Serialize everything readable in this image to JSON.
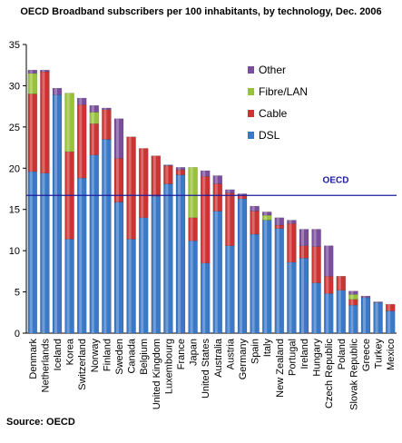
{
  "chart_data": {
    "type": "bar",
    "stacked": true,
    "title": "OECD Broadband subscribers per 100 inhabitants, by technology, Dec. 2006",
    "xlabel": "",
    "ylabel": "",
    "ylim": [
      0,
      35
    ],
    "yticks": [
      0,
      5,
      10,
      15,
      20,
      25,
      30,
      35
    ],
    "grid": false,
    "legend_position": "top-right",
    "categories": [
      "Denmark",
      "Netherlands",
      "Iceland",
      "Korea",
      "Switzerland",
      "Norway",
      "Finland",
      "Sweden",
      "Canada",
      "Belgium",
      "United Kingdom",
      "Luxembourg",
      "France",
      "Japan",
      "United States",
      "Australia",
      "Austria",
      "Germany",
      "Spain",
      "Italy",
      "New Zealand",
      "Portugal",
      "Ireland",
      "Hungary",
      "Czech Republic",
      "Poland",
      "Slovak Republic",
      "Greece",
      "Turkey",
      "Mexico"
    ],
    "series": [
      {
        "name": "DSL",
        "color": "#3a78c8",
        "values": [
          19.6,
          19.4,
          28.9,
          11.4,
          18.8,
          21.6,
          23.5,
          15.9,
          11.4,
          14.0,
          16.6,
          18.1,
          19.2,
          11.2,
          8.5,
          14.8,
          10.6,
          16.3,
          12.0,
          13.7,
          12.7,
          8.6,
          9.1,
          6.1,
          4.8,
          5.2,
          3.4,
          4.3,
          3.7,
          2.7
        ]
      },
      {
        "name": "Cable",
        "color": "#cc3333",
        "values": [
          9.4,
          12.3,
          0.0,
          10.6,
          8.9,
          3.8,
          3.6,
          5.3,
          12.4,
          8.4,
          4.9,
          2.2,
          0.6,
          2.8,
          10.5,
          3.3,
          6.4,
          0.4,
          2.8,
          0.0,
          0.4,
          4.7,
          1.5,
          4.4,
          2.1,
          1.7,
          0.7,
          0.0,
          0.0,
          0.8
        ]
      },
      {
        "name": "Fibre/LAN",
        "color": "#99c23c",
        "values": [
          2.5,
          0.0,
          0.0,
          7.1,
          0.0,
          1.4,
          0.0,
          0.0,
          0.0,
          0.0,
          0.0,
          0.0,
          0.0,
          6.1,
          0.0,
          0.0,
          0.0,
          0.0,
          0.0,
          0.6,
          0.0,
          0.0,
          0.0,
          0.0,
          0.0,
          0.0,
          0.6,
          0.0,
          0.0,
          0.0
        ]
      },
      {
        "name": "Other",
        "color": "#7a4e9c",
        "values": [
          0.4,
          0.2,
          0.8,
          0.0,
          0.8,
          0.8,
          0.2,
          4.8,
          0.0,
          0.0,
          0.0,
          0.1,
          0.3,
          0.0,
          0.7,
          1.0,
          0.4,
          0.2,
          0.6,
          0.4,
          0.9,
          0.4,
          2.0,
          2.1,
          3.7,
          0.0,
          0.4,
          0.2,
          0.1,
          0.0
        ]
      }
    ],
    "reference_line": {
      "label": "OECD",
      "value": 16.7,
      "color": "#1d1d9c"
    },
    "source": "Source: OECD"
  }
}
